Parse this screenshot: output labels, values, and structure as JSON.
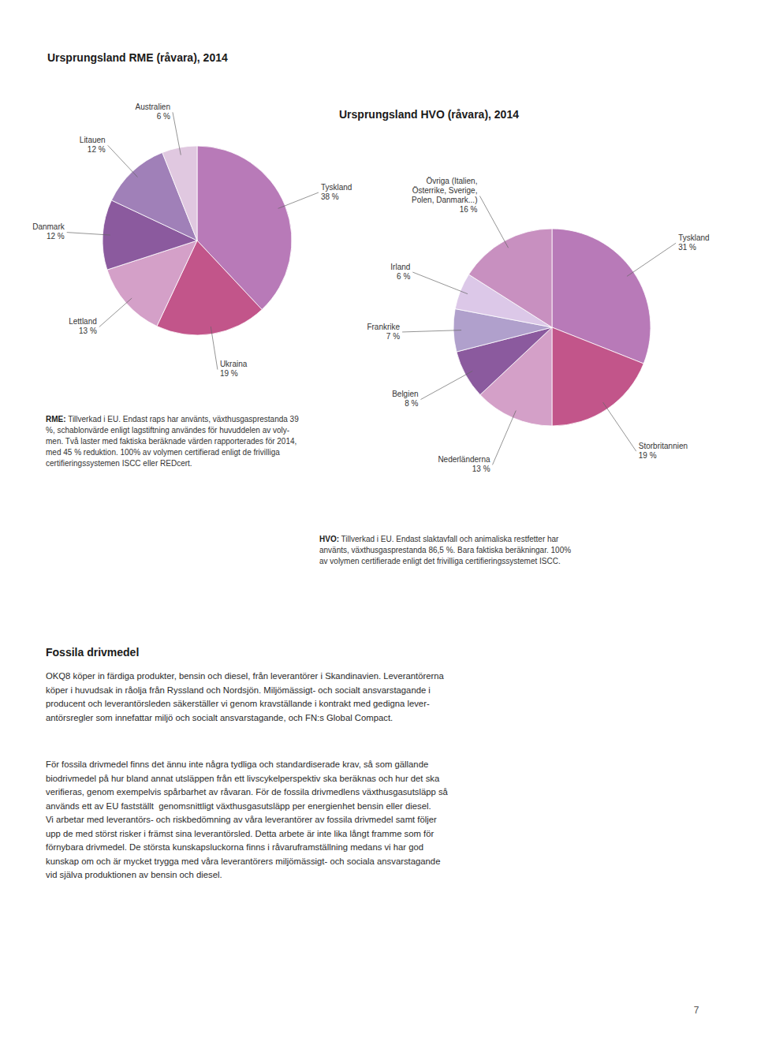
{
  "chart_data": [
    {
      "type": "pie",
      "title": "Ursprungsland RME (råvara), 2014",
      "categories": [
        "Tyskland",
        "Ukraina",
        "Lettland",
        "Danmark",
        "Litauen",
        "Australien"
      ],
      "values": [
        38,
        19,
        13,
        12,
        12,
        6
      ],
      "value_labels": [
        "38 %",
        "19 %",
        "13 %",
        "12 %",
        "12 %",
        "6 %"
      ],
      "colors": [
        "#b87ab8",
        "#c2558a",
        "#d4a0c8",
        "#8b5a9e",
        "#a080b8",
        "#e0c8e0"
      ],
      "data_labels": true,
      "annotations": [
        "RME:",
        " Tillverkad i EU. Endast raps har använts, växthusgasprestanda 39\n%, schablonvärde enligt lagstiftning användes för huvuddelen av voly-\nmen. Två laster med faktiska beräknade värden rapporterades för 2014,\nmed 45 % reduktion. 100% av volymen certifierad enligt de frivilliga\ncertifieringssystemen ISCC eller REDcert."
      ]
    },
    {
      "type": "pie",
      "title": "Ursprungsland HVO (råvara), 2014",
      "categories": [
        "Tyskland",
        "Storbritannien",
        "Nederländerna",
        "Belgien",
        "Frankrike",
        "Irland",
        "Övriga (Italien,\nÖsterrike, Sverige,\nPolen, Danmark...)"
      ],
      "values": [
        31,
        19,
        13,
        8,
        7,
        6,
        16
      ],
      "value_labels": [
        "31 %",
        "19 %",
        "13 %",
        "8 %",
        "7 %",
        "6 %",
        "16 %"
      ],
      "colors": [
        "#b87ab8",
        "#c2558a",
        "#d4a0c8",
        "#8b5a9e",
        "#b0a0cc",
        "#dcc8e8",
        "#c890c0"
      ],
      "data_labels": true,
      "annotations": [
        "HVO:",
        " Tillverkad i EU. Endast slaktavfall och animaliska restfetter har\nanvänts, växthusgasprestanda 86,5 %. Bara faktiska beräkningar. 100%\nav volymen certifierade enligt det frivilliga certifieringssystemet ISCC."
      ]
    }
  ],
  "page_text": {
    "title": "Fossila drivmedel",
    "paragraphs": [
      "OKQ8 köper in färdiga produkter, bensin och diesel, från leverantörer i Skandinavien. Leverantörerna\nköper i huvudsak in råolja från Ryssland och Nordsjön. Miljömässigt- och socialt ansvarstagande i\nproducent och leverantörsleden säkerställer vi genom kravställande i kontrakt med gedigna lever-\nantörsregler som innefattar miljö och socialt ansvarstagande, och FN:s Global Compact.",
      "För fossila drivmedel finns det ännu inte några tydliga och standardiserade krav, så som gällande\nbiodrivmedel på hur bland annat utsläppen från ett livscykelperspektiv ska beräknas och hur det ska\nverifieras, genom exempelvis spårbarhet av råvaran. För de fossila drivmedlens växthusgasutsläpp så\nanvänds ett av EU fastställt  genomsnittligt växthusgasutsläpp per energienhet bensin eller diesel.\nVi arbetar med leverantörs- och riskbedömning av våra leverantörer av fossila drivmedel samt följer\nupp de med störst risker i främst sina leverantörsled. Detta arbete är inte lika långt framme som för\nförnybara drivmedel. De största kunskapsluckorna finns i råvaruframställning medans vi har god\nkunskap om och är mycket trygga med våra leverantörers miljömässigt- och sociala ansvarstagande\nvid själva produktionen av bensin och diesel."
    ],
    "page_number": "7"
  }
}
